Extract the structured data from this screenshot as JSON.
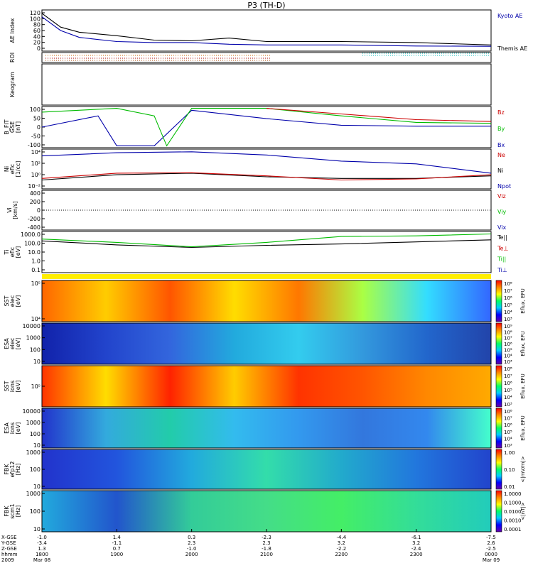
{
  "title": "P3 (TH-D)",
  "panels": [
    {
      "id": "ae",
      "ylabel": [
        "AE Index"
      ],
      "ticks": [
        "120",
        "100",
        "80",
        "60",
        "40",
        "20",
        "0"
      ],
      "legend": [
        {
          "text": "Kyoto AE",
          "color": "#0000aa"
        },
        {
          "text": "Themis AE",
          "color": "#000000"
        }
      ]
    },
    {
      "id": "roi",
      "ylabel": [
        "ROI"
      ],
      "ticks": [],
      "legend": []
    },
    {
      "id": "keogram",
      "ylabel": [
        "Keogram"
      ],
      "ticks": [],
      "legend": []
    },
    {
      "id": "bfit",
      "ylabel": [
        "B_FIT",
        "GSE",
        "[nT]"
      ],
      "ticks": [
        "100",
        "50",
        "0",
        "-50",
        "-100"
      ],
      "legend": [
        {
          "text": "Bz",
          "color": "#cc0000"
        },
        {
          "text": "By",
          "color": "#00bb00"
        },
        {
          "text": "Bx",
          "color": "#0000aa"
        }
      ]
    },
    {
      "id": "ni",
      "ylabel": [
        "Ni",
        "eflc",
        "[1/cc]"
      ],
      "ticks": [
        "10⁴",
        "10²",
        "10⁰",
        "10⁻²"
      ],
      "legend": [
        {
          "text": "Ne",
          "color": "#cc0000"
        },
        {
          "text": "Ni",
          "color": "#000000"
        },
        {
          "text": "Npot",
          "color": "#0000aa"
        }
      ]
    },
    {
      "id": "vi",
      "ylabel": [
        "Vi",
        "[km/s]"
      ],
      "ticks": [
        "400",
        "200",
        "0",
        "-200",
        "-400"
      ],
      "legend": [
        {
          "text": "Viz",
          "color": "#cc0000"
        },
        {
          "text": "Viy",
          "color": "#00bb00"
        },
        {
          "text": "Vix",
          "color": "#0000aa"
        }
      ]
    },
    {
      "id": "ti",
      "ylabel": [
        "Ti",
        "eflc",
        "[eV]"
      ],
      "ticks": [
        "1000.0",
        "100.0",
        "10.0",
        "1.0",
        "0.1"
      ],
      "legend": [
        {
          "text": "Te||",
          "color": "#000000"
        },
        {
          "text": "Te⊥",
          "color": "#cc0000"
        },
        {
          "text": "Ti||",
          "color": "#00bb00"
        },
        {
          "text": "Ti⊥",
          "color": "#0000aa"
        }
      ]
    },
    {
      "id": "sst_e",
      "ylabel": [
        "SST",
        "elec",
        "[eV]"
      ],
      "ticks": [
        "10⁵",
        "10⁴"
      ],
      "cbar": [
        "10⁸",
        "10⁷",
        "10⁶",
        "10⁵",
        "10⁴",
        "10³"
      ],
      "cunit": "Eflux, EFU"
    },
    {
      "id": "esa_e",
      "ylabel": [
        "ESA",
        "elec",
        "[eV]"
      ],
      "ticks": [
        "10000",
        "1000",
        "100",
        "10"
      ],
      "cbar": [
        "10⁹",
        "10⁸",
        "10⁷",
        "10⁶",
        "10⁵",
        "10⁴",
        "10³"
      ],
      "cunit": "Eflux, EFU"
    },
    {
      "id": "sst_i",
      "ylabel": [
        "SST",
        "ions",
        "[eV]"
      ],
      "ticks": [
        "10⁵"
      ],
      "cbar": [
        "10⁸",
        "10⁷",
        "10⁶",
        "10⁵",
        "10⁴",
        "10³"
      ],
      "cunit": "Eflux, EFU"
    },
    {
      "id": "esa_i",
      "ylabel": [
        "ESA",
        "ions",
        "[eV]"
      ],
      "ticks": [
        "10000",
        "1000",
        "100",
        "10"
      ],
      "cbar": [
        "10⁸",
        "10⁷",
        "10⁶",
        "10⁵",
        "10⁴",
        "10³"
      ],
      "cunit": "Eflux, EFU"
    },
    {
      "id": "fbk_e",
      "ylabel": [
        "FBK",
        "efp12",
        "[Hz]"
      ],
      "ticks": [
        "1000",
        "100",
        "10"
      ],
      "cbar": [
        "1.00",
        "0.10",
        "0.01"
      ],
      "cunit": "<|mV/m|>"
    },
    {
      "id": "fbk_b",
      "ylabel": [
        "FBK",
        "scm1",
        "[Hz]"
      ],
      "ticks": [
        "1000",
        "100",
        "10"
      ],
      "cbar": [
        "1.0000",
        "0.1000",
        "0.0100",
        "0.0010",
        "0.0001"
      ],
      "cunit": "<|nT|>"
    }
  ],
  "xaxis": {
    "row_labels": [
      "X-GSE",
      "Y-GSE",
      "Z-GSE",
      "hhmm",
      "2009"
    ],
    "columns": [
      {
        "v": [
          "-1.0",
          "-3.4",
          "1.3",
          "1800",
          "Mar 08"
        ]
      },
      {
        "v": [
          "1.4",
          "-1.1",
          "0.7",
          "1900",
          ""
        ]
      },
      {
        "v": [
          "0.3",
          "2.3",
          "-1.0",
          "2000",
          ""
        ]
      },
      {
        "v": [
          "-2.3",
          "2.3",
          "-1.8",
          "2100",
          ""
        ]
      },
      {
        "v": [
          "-4.4",
          "3.2",
          "-2.2",
          "2200",
          ""
        ]
      },
      {
        "v": [
          "-6.1",
          "3.2",
          "-2.4",
          "2300",
          ""
        ]
      },
      {
        "v": [
          "-7.5",
          "2.6",
          "-2.5",
          "0000",
          "Mar 09"
        ]
      }
    ]
  },
  "chart_data": {
    "type": "line",
    "title": "P3 (TH-D)",
    "x_ticks": [
      "1800",
      "1900",
      "2000",
      "2100",
      "2200",
      "2300",
      "0000"
    ],
    "series": [
      {
        "name": "Kyoto AE",
        "panel": "AE Index",
        "x": [
          "1800",
          "1815",
          "1830",
          "1900",
          "1930",
          "2000",
          "2030",
          "2100",
          "2200",
          "2300",
          "0000"
        ],
        "values": [
          100,
          60,
          40,
          28,
          25,
          25,
          20,
          18,
          18,
          15,
          14
        ]
      },
      {
        "name": "Themis AE",
        "panel": "AE Index",
        "x": [
          "1800",
          "1815",
          "1830",
          "1900",
          "1930",
          "2000",
          "2030",
          "2100",
          "2200",
          "2300",
          "0000"
        ],
        "values": [
          110,
          70,
          55,
          45,
          32,
          30,
          38,
          28,
          28,
          25,
          18
        ]
      },
      {
        "name": "Bx",
        "panel": "B_FIT",
        "x": [
          "1800",
          "1845",
          "1900",
          "1930",
          "2000",
          "2100",
          "2200",
          "2300",
          "0000"
        ],
        "values": [
          0,
          60,
          -100,
          -100,
          90,
          45,
          10,
          5,
          5
        ]
      },
      {
        "name": "By",
        "panel": "B_FIT",
        "x": [
          "1800",
          "1900",
          "1930",
          "1940",
          "2000",
          "2100",
          "2200",
          "2300",
          "0000"
        ],
        "values": [
          80,
          100,
          60,
          -100,
          100,
          100,
          60,
          25,
          20
        ]
      },
      {
        "name": "Bz",
        "panel": "B_FIT",
        "x": [
          "2100",
          "2200",
          "2300",
          "0000"
        ],
        "values": [
          100,
          70,
          40,
          30
        ]
      },
      {
        "name": "Npot",
        "panel": "Ni",
        "x": [
          "1800",
          "1900",
          "2000",
          "2100",
          "2200",
          "2300",
          "0000"
        ],
        "values": [
          2000,
          8000,
          12000,
          3000,
          200,
          60,
          1
        ]
      },
      {
        "name": "Ni",
        "panel": "Ni",
        "x": [
          "1800",
          "1900",
          "2000",
          "2100",
          "2200",
          "2300",
          "0000"
        ],
        "values": [
          0.05,
          0.5,
          1,
          0.2,
          0.1,
          0.1,
          0.3
        ]
      },
      {
        "name": "Ne",
        "panel": "Ni",
        "x": [
          "1800",
          "1900",
          "2000",
          "2100",
          "2200",
          "2300",
          "0000"
        ],
        "values": [
          0.1,
          1,
          1.2,
          0.3,
          0.05,
          0.08,
          0.5
        ]
      },
      {
        "name": "Te||",
        "panel": "Ti",
        "x": [
          "1800",
          "1900",
          "2000",
          "2100",
          "2200",
          "2300",
          "0000"
        ],
        "values": [
          300,
          100,
          50,
          90,
          130,
          230,
          400
        ]
      },
      {
        "name": "Ti||",
        "panel": "Ti",
        "x": [
          "1800",
          "1900",
          "2000",
          "2100",
          "2200",
          "2300",
          "0000"
        ],
        "values": [
          500,
          200,
          60,
          200,
          1000,
          1200,
          2000
        ]
      }
    ],
    "xlabel": "hhmm",
    "grid": false
  }
}
